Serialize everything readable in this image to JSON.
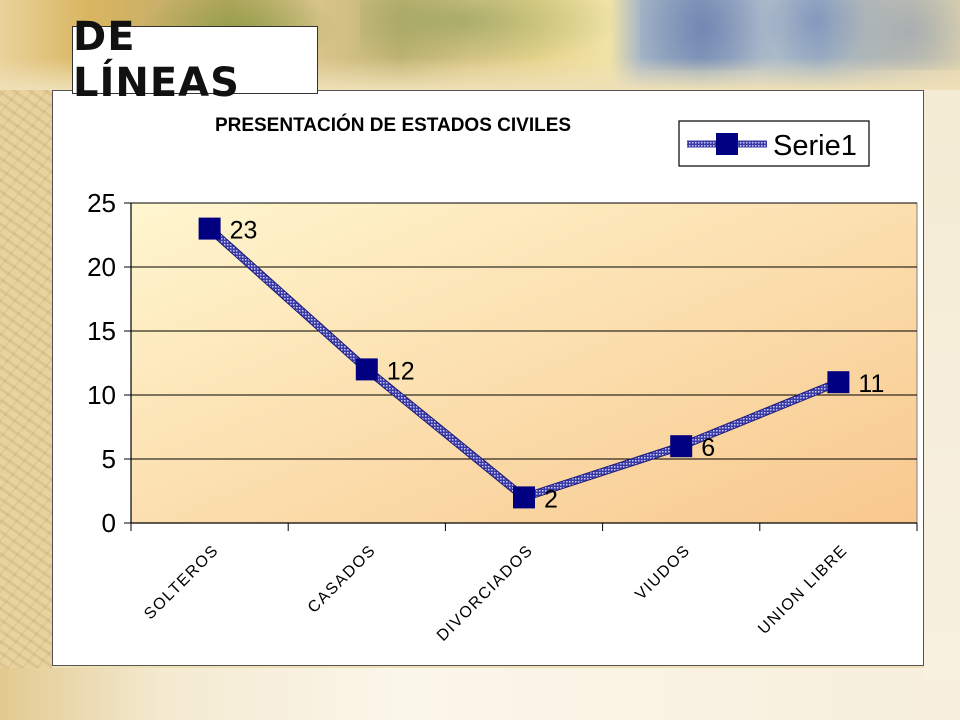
{
  "slide": {
    "title": "DE LÍNEAS"
  },
  "colors": {
    "series": "#1a1a8a",
    "marker": "#000080",
    "plot_area_top": "#fff6cf",
    "plot_area_bottom": "#f8c88e",
    "gridline": "#000000"
  },
  "chart_data": {
    "type": "line",
    "title": "PRESENTACIÓN DE ESTADOS CIVILES",
    "categories": [
      "SOLTEROS",
      "CASADOS",
      "DIVORCIADOS",
      "VIUDOS",
      "UNION LIBRE"
    ],
    "series": [
      {
        "name": "Serie1",
        "values": [
          23,
          12,
          2,
          6,
          11
        ]
      }
    ],
    "ylim": [
      0,
      25
    ],
    "yticks": [
      0,
      5,
      10,
      15,
      20,
      25
    ],
    "xlabel": "",
    "ylabel": "",
    "grid": true,
    "legend": "top-right",
    "data_labels": true
  }
}
